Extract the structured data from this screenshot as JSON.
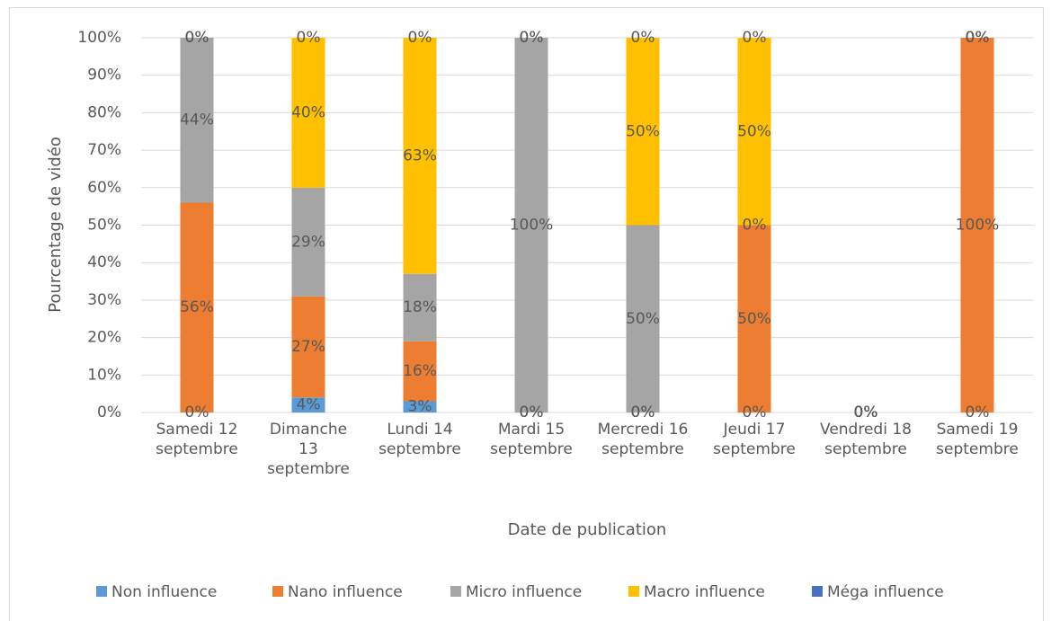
{
  "chart_data": {
    "type": "stacked_bar",
    "categories": [
      "Samedi 12\nseptembre",
      "Dimanche\n13\nseptembre",
      "Lundi 14\nseptembre",
      "Mardi 15\nseptembre",
      "Mercredi 16\nseptembre",
      "Jeudi 17\nseptembre",
      "Vendredi 18\nseptembre",
      "Samedi 19\nseptembre"
    ],
    "series": [
      {
        "name": "Non influence",
        "color": "#5b9bd5",
        "values": [
          0,
          4,
          3,
          0,
          0,
          0,
          0,
          0
        ],
        "value_labels": [
          "0%",
          "4%",
          "3%",
          "0%",
          "0%",
          "0%",
          "0%",
          "0%"
        ]
      },
      {
        "name": "Nano influence",
        "color": "#ed7d31",
        "values": [
          56,
          27,
          16,
          0,
          0,
          50,
          0,
          100
        ],
        "value_labels": [
          "56%",
          "27%",
          "16%",
          "0%",
          "0%",
          "50%",
          "0%",
          "100%"
        ]
      },
      {
        "name": "Micro influence",
        "color": "#a5a5a5",
        "values": [
          44,
          29,
          18,
          100,
          50,
          0,
          0,
          0
        ],
        "value_labels": [
          "44%",
          "29%",
          "18%",
          "100%",
          "50%",
          "0%",
          "0%",
          "0%"
        ]
      },
      {
        "name": "Macro influence",
        "color": "#ffc000",
        "values": [
          0,
          40,
          63,
          0,
          50,
          50,
          0,
          0
        ],
        "value_labels": [
          "0%",
          "40%",
          "63%",
          "0%",
          "50%",
          "50%",
          "0%",
          "0%"
        ]
      },
      {
        "name": "Méga influence",
        "color": "#4472c4",
        "values": [
          0,
          0,
          0,
          0,
          0,
          0,
          0,
          0
        ],
        "value_labels": [
          "0%",
          "0%",
          "0%",
          "0%",
          "0%",
          "0%",
          "0%",
          "0%"
        ]
      }
    ],
    "xlabel": "Date de publication",
    "ylabel": "Pourcentage de vidéo",
    "ylim": [
      0,
      100
    ],
    "yticks": [
      {
        "value": 0,
        "label": "0%"
      },
      {
        "value": 10,
        "label": "10%"
      },
      {
        "value": 20,
        "label": "20%"
      },
      {
        "value": 30,
        "label": "30%"
      },
      {
        "value": 40,
        "label": "40%"
      },
      {
        "value": 50,
        "label": "50%"
      },
      {
        "value": 60,
        "label": "60%"
      },
      {
        "value": 70,
        "label": "70%"
      },
      {
        "value": 80,
        "label": "80%"
      },
      {
        "value": 90,
        "label": "90%"
      },
      {
        "value": 100,
        "label": "100%"
      }
    ],
    "grid": true,
    "legend": "bottom"
  }
}
